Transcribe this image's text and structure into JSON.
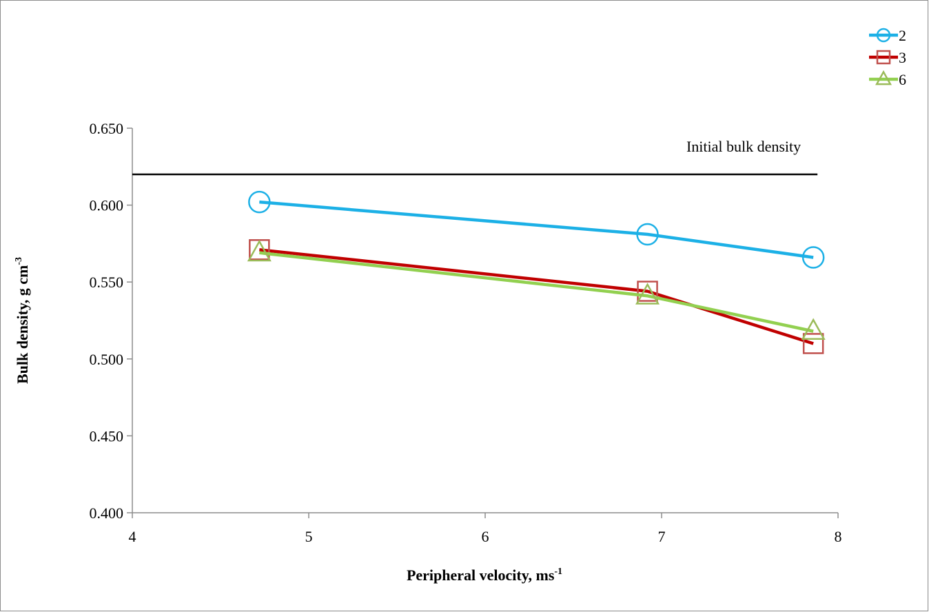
{
  "chart_data": {
    "type": "line",
    "title": "",
    "xlabel": "Peripheral velocity, ms",
    "xlabel_sup": "-1",
    "ylabel": "Bulk density, g cm",
    "ylabel_sup": "-3",
    "xlim": [
      4,
      8
    ],
    "ylim": [
      0.4,
      0.65
    ],
    "xticks": [
      4,
      5,
      6,
      7,
      8
    ],
    "yticks": [
      0.4,
      0.45,
      0.5,
      0.55,
      0.6,
      0.65
    ],
    "ytick_labels": [
      "0.400",
      "0.450",
      "0.500",
      "0.550",
      "0.600",
      "0.650"
    ],
    "xtick_labels": [
      "4",
      "5",
      "6",
      "7",
      "8"
    ],
    "grid": false,
    "legend_position": "top-right",
    "series": [
      {
        "name": "2",
        "marker": "circle",
        "color": "#1cb0e6",
        "x": [
          4.72,
          6.92,
          7.86
        ],
        "y": [
          0.602,
          0.581,
          0.566
        ]
      },
      {
        "name": "3",
        "marker": "square",
        "color": "#c00000",
        "marker_color": "#c0504d",
        "x": [
          4.72,
          6.92,
          7.86
        ],
        "y": [
          0.571,
          0.544,
          0.51
        ]
      },
      {
        "name": "6",
        "marker": "triangle",
        "color": "#92d050",
        "marker_color": "#9bbb59",
        "x": [
          4.72,
          6.92,
          7.86
        ],
        "y": [
          0.569,
          0.541,
          0.518
        ]
      }
    ],
    "reference_line": {
      "label": "Initial bulk density",
      "y": 0.62,
      "x": [
        4,
        7.86
      ],
      "color": "#000000"
    }
  }
}
